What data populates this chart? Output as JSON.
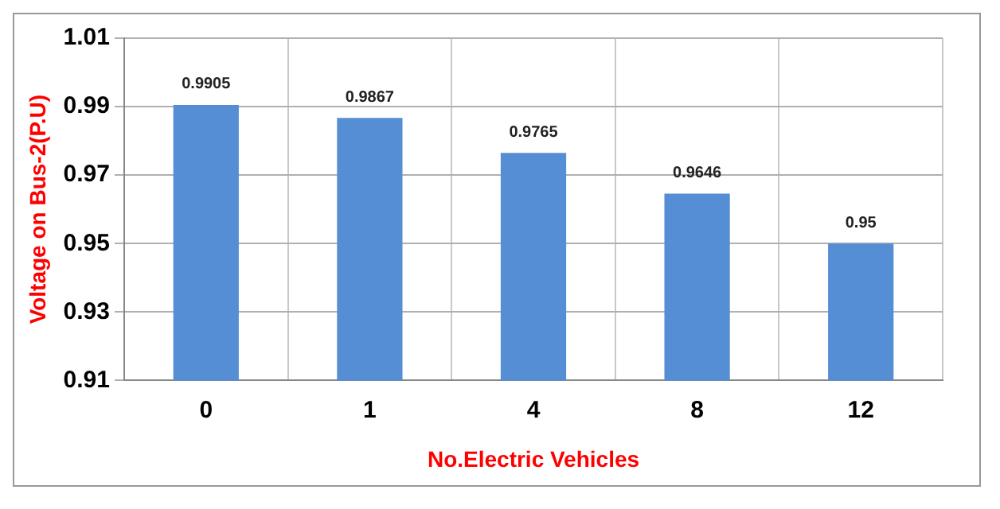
{
  "chart_data": {
    "type": "bar",
    "xlabel": "No.Electric Vehicles",
    "ylabel": "Voltage on Bus-2(P.U)",
    "categories": [
      "0",
      "1",
      "4",
      "8",
      "12"
    ],
    "values": [
      0.9905,
      0.9867,
      0.9765,
      0.9646,
      0.95
    ],
    "color": "#558ed5",
    "ylim": [
      0.91,
      1.01
    ],
    "yticks": [
      0.91,
      0.93,
      0.95,
      0.97,
      0.99,
      1.01
    ],
    "grid": true,
    "data_labels": true
  }
}
